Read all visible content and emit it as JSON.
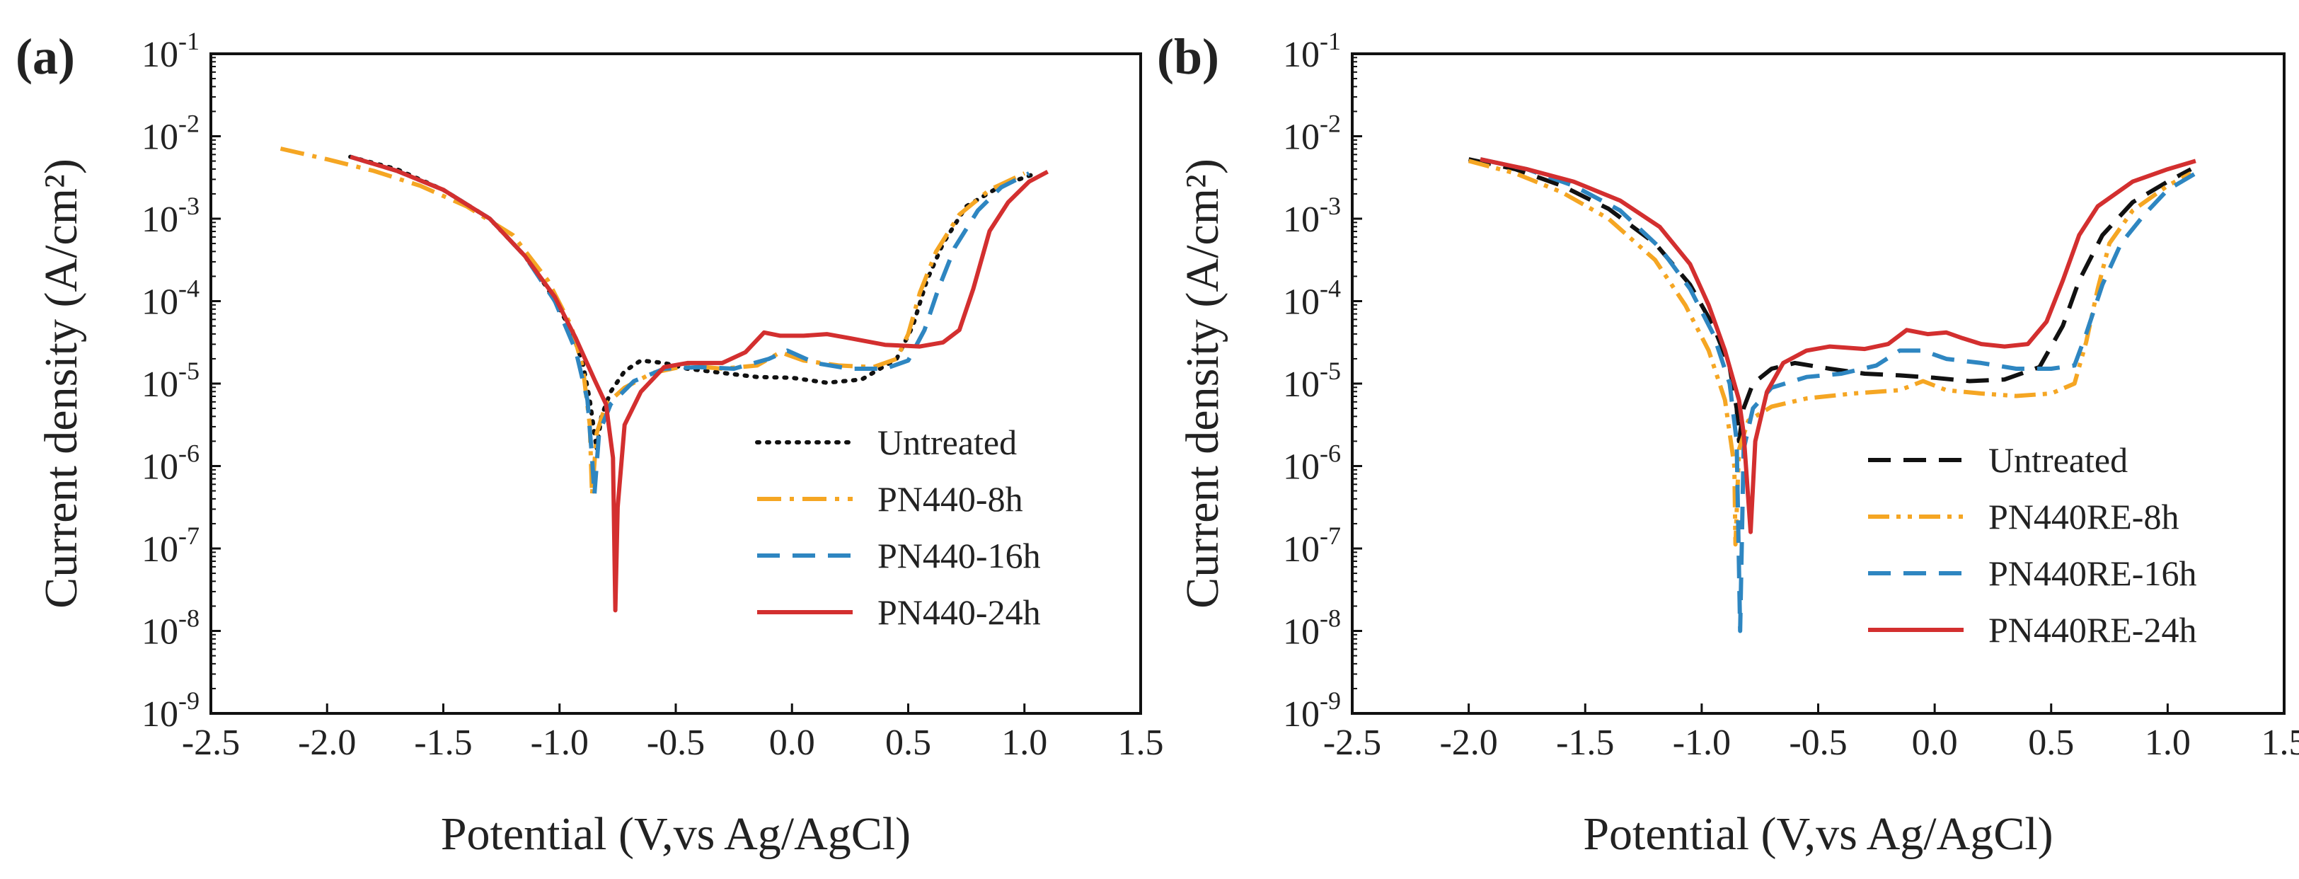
{
  "figure_labels": {
    "panel_a": "(a)",
    "panel_b": "(b)"
  },
  "colors": {
    "untreated": "#111111",
    "h8": "#f5a623",
    "h16": "#2e86c1",
    "h24": "#d32f2f"
  },
  "chart_data": [
    {
      "id": "panel-a",
      "type": "line",
      "title": "",
      "xlabel": "Potential (V,vs Ag/AgCl)",
      "ylabel": "Current density (A/cm²)",
      "y_scale": "log",
      "xlim": [
        -2.5,
        1.5
      ],
      "ylim_exp": [
        -9,
        -1
      ],
      "x_ticks": [
        -2.5,
        -2.0,
        -1.5,
        -1.0,
        -0.5,
        0.0,
        0.5,
        1.0,
        1.5
      ],
      "x_tick_labels": [
        "-2.5",
        "-2.0",
        "-1.5",
        "-1.0",
        "-0.5",
        "0.0",
        "0.5",
        "1.0",
        "1.5"
      ],
      "y_tick_exponents": [
        -9,
        -8,
        -7,
        -6,
        -5,
        -4,
        -3,
        -2,
        -1
      ],
      "y_tick_base": "10",
      "y_tick_sups": [
        "-9",
        "-8",
        "-7",
        "-6",
        "-5",
        "-4",
        "-3",
        "-2",
        "-1"
      ],
      "legend_position": "lower-right",
      "series": [
        {
          "name": "Untreated",
          "color_key": "untreated",
          "style": "dotted",
          "points": [
            [
              -1.9,
              -2.25
            ],
            [
              -1.7,
              -2.4
            ],
            [
              -1.5,
              -2.65
            ],
            [
              -1.3,
              -3.0
            ],
            [
              -1.15,
              -3.45
            ],
            [
              -1.05,
              -3.85
            ],
            [
              -0.95,
              -4.35
            ],
            [
              -0.9,
              -4.75
            ],
            [
              -0.87,
              -5.2
            ],
            [
              -0.85,
              -5.6
            ],
            [
              -0.84,
              -5.8
            ],
            [
              -0.82,
              -5.4
            ],
            [
              -0.78,
              -5.1
            ],
            [
              -0.72,
              -4.85
            ],
            [
              -0.65,
              -4.72
            ],
            [
              -0.55,
              -4.75
            ],
            [
              -0.45,
              -4.82
            ],
            [
              -0.3,
              -4.87
            ],
            [
              -0.15,
              -4.92
            ],
            [
              0.0,
              -4.93
            ],
            [
              0.15,
              -4.99
            ],
            [
              0.3,
              -4.95
            ],
            [
              0.45,
              -4.7
            ],
            [
              0.52,
              -4.3
            ],
            [
              0.58,
              -3.75
            ],
            [
              0.65,
              -3.3
            ],
            [
              0.75,
              -2.85
            ],
            [
              0.9,
              -2.6
            ],
            [
              1.05,
              -2.45
            ]
          ]
        },
        {
          "name": "PN440-8h",
          "color_key": "h8",
          "style": "dashdot",
          "points": [
            [
              -2.2,
              -2.15
            ],
            [
              -2.0,
              -2.28
            ],
            [
              -1.8,
              -2.42
            ],
            [
              -1.6,
              -2.6
            ],
            [
              -1.4,
              -2.85
            ],
            [
              -1.2,
              -3.2
            ],
            [
              -1.05,
              -3.75
            ],
            [
              -0.95,
              -4.3
            ],
            [
              -0.9,
              -4.8
            ],
            [
              -0.87,
              -5.5
            ],
            [
              -0.86,
              -6.35
            ],
            [
              -0.84,
              -5.6
            ],
            [
              -0.8,
              -5.25
            ],
            [
              -0.72,
              -5.05
            ],
            [
              -0.6,
              -4.87
            ],
            [
              -0.45,
              -4.78
            ],
            [
              -0.3,
              -4.82
            ],
            [
              -0.15,
              -4.78
            ],
            [
              -0.05,
              -4.62
            ],
            [
              0.05,
              -4.72
            ],
            [
              0.2,
              -4.78
            ],
            [
              0.35,
              -4.8
            ],
            [
              0.45,
              -4.7
            ],
            [
              0.5,
              -4.4
            ],
            [
              0.55,
              -3.9
            ],
            [
              0.62,
              -3.4
            ],
            [
              0.72,
              -2.95
            ],
            [
              0.85,
              -2.65
            ],
            [
              1.0,
              -2.45
            ]
          ]
        },
        {
          "name": "PN440-16h",
          "color_key": "h16",
          "style": "dashed",
          "points": [
            [
              -1.9,
              -2.25
            ],
            [
              -1.7,
              -2.42
            ],
            [
              -1.5,
              -2.65
            ],
            [
              -1.3,
              -3.0
            ],
            [
              -1.15,
              -3.45
            ],
            [
              -1.02,
              -4.0
            ],
            [
              -0.93,
              -4.6
            ],
            [
              -0.88,
              -5.2
            ],
            [
              -0.86,
              -5.9
            ],
            [
              -0.85,
              -6.35
            ],
            [
              -0.83,
              -5.6
            ],
            [
              -0.78,
              -5.25
            ],
            [
              -0.68,
              -4.97
            ],
            [
              -0.55,
              -4.82
            ],
            [
              -0.4,
              -4.8
            ],
            [
              -0.25,
              -4.82
            ],
            [
              -0.1,
              -4.7
            ],
            [
              -0.02,
              -4.6
            ],
            [
              0.1,
              -4.75
            ],
            [
              0.25,
              -4.82
            ],
            [
              0.4,
              -4.82
            ],
            [
              0.5,
              -4.72
            ],
            [
              0.57,
              -4.35
            ],
            [
              0.63,
              -3.85
            ],
            [
              0.7,
              -3.35
            ],
            [
              0.8,
              -2.9
            ],
            [
              0.9,
              -2.62
            ],
            [
              1.02,
              -2.45
            ]
          ]
        },
        {
          "name": "PN440-24h",
          "color_key": "h24",
          "style": "solid",
          "points": [
            [
              -1.9,
              -2.25
            ],
            [
              -1.7,
              -2.42
            ],
            [
              -1.5,
              -2.65
            ],
            [
              -1.3,
              -3.0
            ],
            [
              -1.15,
              -3.45
            ],
            [
              -1.02,
              -3.95
            ],
            [
              -0.93,
              -4.45
            ],
            [
              -0.85,
              -4.95
            ],
            [
              -0.8,
              -5.25
            ],
            [
              -0.77,
              -5.9
            ],
            [
              -0.76,
              -7.75
            ],
            [
              -0.75,
              -6.5
            ],
            [
              -0.72,
              -5.5
            ],
            [
              -0.65,
              -5.1
            ],
            [
              -0.55,
              -4.8
            ],
            [
              -0.45,
              -4.75
            ],
            [
              -0.3,
              -4.75
            ],
            [
              -0.2,
              -4.62
            ],
            [
              -0.12,
              -4.38
            ],
            [
              -0.05,
              -4.42
            ],
            [
              0.05,
              -4.42
            ],
            [
              0.15,
              -4.4
            ],
            [
              0.25,
              -4.45
            ],
            [
              0.4,
              -4.53
            ],
            [
              0.55,
              -4.55
            ],
            [
              0.65,
              -4.5
            ],
            [
              0.72,
              -4.35
            ],
            [
              0.78,
              -3.85
            ],
            [
              0.85,
              -3.15
            ],
            [
              0.93,
              -2.8
            ],
            [
              1.02,
              -2.55
            ],
            [
              1.1,
              -2.43
            ]
          ]
        }
      ]
    },
    {
      "id": "panel-b",
      "type": "line",
      "title": "",
      "xlabel": "Potential (V,vs Ag/AgCl)",
      "ylabel": "Current density (A/cm²)",
      "y_scale": "log",
      "xlim": [
        -2.5,
        1.5
      ],
      "ylim_exp": [
        -9,
        -1
      ],
      "x_ticks": [
        -2.5,
        -2.0,
        -1.5,
        -1.0,
        -0.5,
        0.0,
        0.5,
        1.0,
        1.5
      ],
      "x_tick_labels": [
        "-2.5",
        "-2.0",
        "-1.5",
        "-1.0",
        "-0.5",
        "0.0",
        "0.5",
        "1.0",
        "1.5"
      ],
      "y_tick_exponents": [
        -9,
        -8,
        -7,
        -6,
        -5,
        -4,
        -3,
        -2,
        -1
      ],
      "y_tick_base": "10",
      "y_tick_sups": [
        "-9",
        "-8",
        "-7",
        "-6",
        "-5",
        "-4",
        "-3",
        "-2",
        "-1"
      ],
      "legend_position": "lower-right",
      "series": [
        {
          "name": "Untreated",
          "color_key": "untreated",
          "style": "dashed",
          "points": [
            [
              -2.0,
              -2.28
            ],
            [
              -1.8,
              -2.4
            ],
            [
              -1.6,
              -2.6
            ],
            [
              -1.4,
              -2.88
            ],
            [
              -1.2,
              -3.3
            ],
            [
              -1.05,
              -3.8
            ],
            [
              -0.95,
              -4.3
            ],
            [
              -0.88,
              -4.8
            ],
            [
              -0.85,
              -5.3
            ],
            [
              -0.84,
              -5.7
            ],
            [
              -0.82,
              -5.3
            ],
            [
              -0.78,
              -5.0
            ],
            [
              -0.7,
              -4.82
            ],
            [
              -0.6,
              -4.75
            ],
            [
              -0.45,
              -4.82
            ],
            [
              -0.3,
              -4.88
            ],
            [
              -0.15,
              -4.9
            ],
            [
              0.0,
              -4.93
            ],
            [
              0.15,
              -4.97
            ],
            [
              0.3,
              -4.95
            ],
            [
              0.45,
              -4.8
            ],
            [
              0.55,
              -4.3
            ],
            [
              0.62,
              -3.75
            ],
            [
              0.72,
              -3.2
            ],
            [
              0.85,
              -2.8
            ],
            [
              1.0,
              -2.55
            ],
            [
              1.1,
              -2.4
            ]
          ]
        },
        {
          "name": "PN440RE-8h",
          "color_key": "h8",
          "style": "dashdotdot",
          "points": [
            [
              -2.0,
              -2.3
            ],
            [
              -1.8,
              -2.45
            ],
            [
              -1.6,
              -2.68
            ],
            [
              -1.4,
              -3.0
            ],
            [
              -1.2,
              -3.5
            ],
            [
              -1.07,
              -4.05
            ],
            [
              -0.97,
              -4.6
            ],
            [
              -0.9,
              -5.2
            ],
            [
              -0.86,
              -6.0
            ],
            [
              -0.855,
              -6.95
            ],
            [
              -0.84,
              -5.8
            ],
            [
              -0.8,
              -5.45
            ],
            [
              -0.7,
              -5.28
            ],
            [
              -0.55,
              -5.18
            ],
            [
              -0.35,
              -5.12
            ],
            [
              -0.15,
              -5.08
            ],
            [
              -0.05,
              -4.97
            ],
            [
              0.05,
              -5.08
            ],
            [
              0.2,
              -5.12
            ],
            [
              0.35,
              -5.15
            ],
            [
              0.5,
              -5.12
            ],
            [
              0.6,
              -5.0
            ],
            [
              0.65,
              -4.5
            ],
            [
              0.7,
              -3.85
            ],
            [
              0.75,
              -3.3
            ],
            [
              0.85,
              -2.9
            ],
            [
              1.0,
              -2.6
            ],
            [
              1.1,
              -2.45
            ]
          ]
        },
        {
          "name": "PN440RE-16h",
          "color_key": "h16",
          "style": "dashed",
          "points": [
            [
              -1.95,
              -2.28
            ],
            [
              -1.75,
              -2.4
            ],
            [
              -1.55,
              -2.6
            ],
            [
              -1.35,
              -2.9
            ],
            [
              -1.18,
              -3.35
            ],
            [
              -1.05,
              -3.85
            ],
            [
              -0.95,
              -4.4
            ],
            [
              -0.88,
              -5.0
            ],
            [
              -0.85,
              -5.7
            ],
            [
              -0.835,
              -8.0
            ],
            [
              -0.82,
              -5.8
            ],
            [
              -0.78,
              -5.3
            ],
            [
              -0.7,
              -5.05
            ],
            [
              -0.55,
              -4.92
            ],
            [
              -0.4,
              -4.88
            ],
            [
              -0.25,
              -4.78
            ],
            [
              -0.15,
              -4.6
            ],
            [
              -0.05,
              -4.6
            ],
            [
              0.05,
              -4.7
            ],
            [
              0.2,
              -4.75
            ],
            [
              0.35,
              -4.82
            ],
            [
              0.5,
              -4.82
            ],
            [
              0.6,
              -4.78
            ],
            [
              0.65,
              -4.4
            ],
            [
              0.72,
              -3.8
            ],
            [
              0.8,
              -3.3
            ],
            [
              0.9,
              -2.95
            ],
            [
              1.0,
              -2.65
            ],
            [
              1.12,
              -2.45
            ]
          ]
        },
        {
          "name": "PN440RE-24h",
          "color_key": "h24",
          "style": "solid",
          "points": [
            [
              -1.95,
              -2.28
            ],
            [
              -1.75,
              -2.4
            ],
            [
              -1.55,
              -2.55
            ],
            [
              -1.35,
              -2.78
            ],
            [
              -1.18,
              -3.1
            ],
            [
              -1.05,
              -3.55
            ],
            [
              -0.97,
              -4.05
            ],
            [
              -0.9,
              -4.6
            ],
            [
              -0.84,
              -5.2
            ],
            [
              -0.82,
              -5.6
            ],
            [
              -0.79,
              -6.8
            ],
            [
              -0.77,
              -5.7
            ],
            [
              -0.72,
              -5.1
            ],
            [
              -0.65,
              -4.75
            ],
            [
              -0.55,
              -4.6
            ],
            [
              -0.45,
              -4.55
            ],
            [
              -0.3,
              -4.58
            ],
            [
              -0.2,
              -4.52
            ],
            [
              -0.12,
              -4.35
            ],
            [
              -0.03,
              -4.4
            ],
            [
              0.05,
              -4.38
            ],
            [
              0.12,
              -4.45
            ],
            [
              0.2,
              -4.52
            ],
            [
              0.3,
              -4.55
            ],
            [
              0.4,
              -4.52
            ],
            [
              0.48,
              -4.25
            ],
            [
              0.55,
              -3.75
            ],
            [
              0.62,
              -3.2
            ],
            [
              0.7,
              -2.85
            ],
            [
              0.85,
              -2.55
            ],
            [
              1.0,
              -2.4
            ],
            [
              1.12,
              -2.3
            ]
          ]
        }
      ]
    }
  ]
}
